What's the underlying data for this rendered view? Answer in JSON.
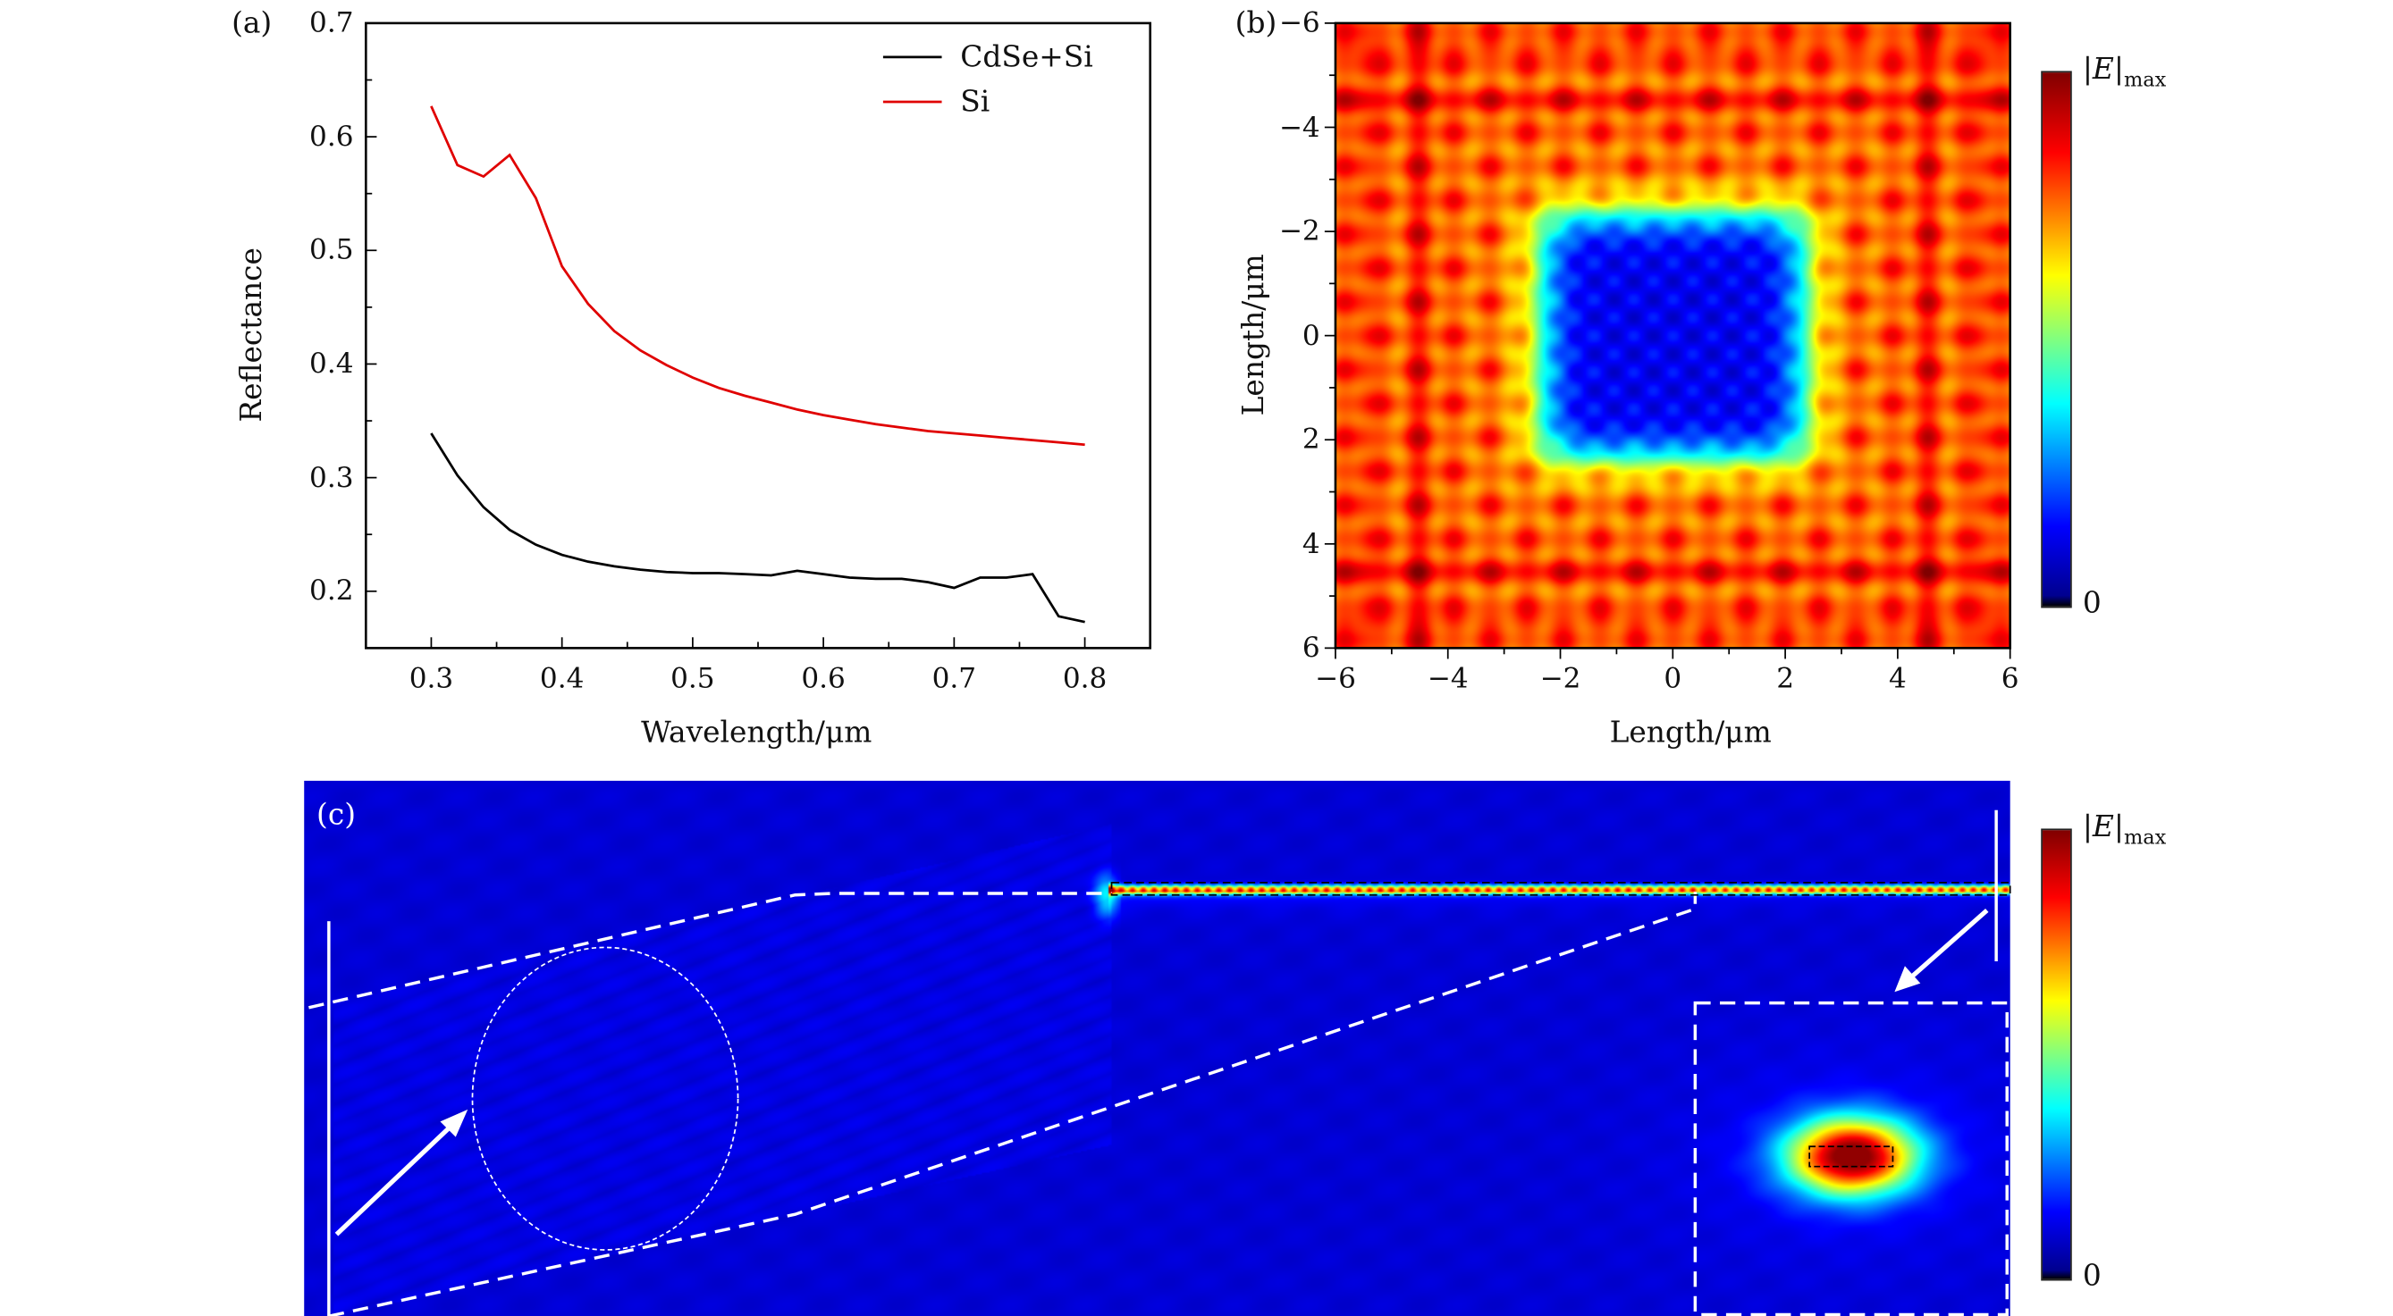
{
  "chart_data": [
    {
      "type": "line",
      "panel_label": "(a)",
      "xlabel": "Wavelength/μm",
      "ylabel": "Reflectance",
      "xlim": [
        0.25,
        0.85
      ],
      "ylim": [
        0.15,
        0.7
      ],
      "xticks": [
        "0.3",
        "0.4",
        "0.5",
        "0.6",
        "0.7",
        "0.8"
      ],
      "yticks": [
        "0.2",
        "0.3",
        "0.4",
        "0.5",
        "0.6",
        "0.7"
      ],
      "legend_position": "top-right",
      "x": [
        0.3,
        0.32,
        0.34,
        0.36,
        0.38,
        0.4,
        0.42,
        0.44,
        0.46,
        0.48,
        0.5,
        0.52,
        0.54,
        0.56,
        0.58,
        0.6,
        0.62,
        0.64,
        0.66,
        0.68,
        0.7,
        0.72,
        0.74,
        0.76,
        0.78,
        0.8
      ],
      "series": [
        {
          "name": "CdSe+Si",
          "color": "#000000",
          "values": [
            0.339,
            0.302,
            0.274,
            0.254,
            0.241,
            0.232,
            0.226,
            0.222,
            0.219,
            0.217,
            0.216,
            0.216,
            0.215,
            0.214,
            0.218,
            0.215,
            0.212,
            0.211,
            0.211,
            0.208,
            0.203,
            0.212,
            0.212,
            0.215,
            0.178,
            0.173
          ]
        },
        {
          "name": "Si",
          "color": "#e00000",
          "values": [
            0.627,
            0.575,
            0.565,
            0.584,
            0.546,
            0.486,
            0.453,
            0.429,
            0.412,
            0.399,
            0.388,
            0.379,
            0.372,
            0.366,
            0.36,
            0.355,
            0.351,
            0.347,
            0.344,
            0.341,
            0.339,
            0.337,
            0.335,
            0.333,
            0.331,
            0.329
          ]
        }
      ]
    },
    {
      "type": "heatmap",
      "panel_label": "(b)",
      "xlabel": "Length/μm",
      "ylabel": "Length/μm",
      "xlim": [
        -6,
        6
      ],
      "ylim": [
        -6,
        6
      ],
      "xticks": [
        "−6",
        "−4",
        "−2",
        "0",
        "2",
        "4",
        "6"
      ],
      "yticks": [
        "−6",
        "−4",
        "−2",
        "0",
        "2",
        "4",
        "6"
      ],
      "colorbar": {
        "max_label": "|E|",
        "max_sub": "max",
        "min_label": "0"
      }
    },
    {
      "type": "heatmap",
      "panel_label": "(c)",
      "colorbar": {
        "max_label": "|E|",
        "max_sub": "max",
        "min_label": "0"
      }
    }
  ]
}
